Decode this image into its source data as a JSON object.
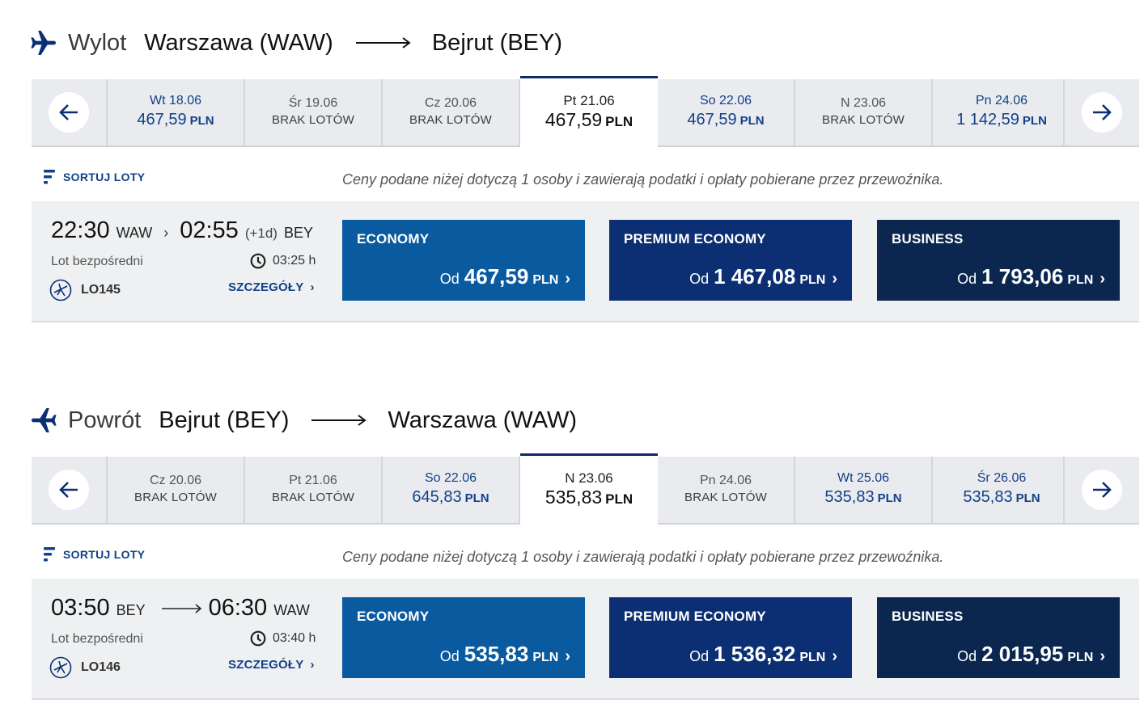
{
  "outbound": {
    "direction_label": "Wylot",
    "from_city": "Warszawa (WAW)",
    "to_city": "Bejrut (BEY)",
    "dates": [
      {
        "label": "Wt 18.06",
        "price": "467,59",
        "currency": "PLN",
        "no_flights": ""
      },
      {
        "label": "Śr 19.06",
        "price": "",
        "currency": "",
        "no_flights": "BRAK LOTÓW"
      },
      {
        "label": "Cz 20.06",
        "price": "",
        "currency": "",
        "no_flights": "BRAK LOTÓW"
      },
      {
        "label": "Pt 21.06",
        "price": "467,59",
        "currency": "PLN",
        "no_flights": "",
        "selected": true
      },
      {
        "label": "So 22.06",
        "price": "467,59",
        "currency": "PLN",
        "no_flights": ""
      },
      {
        "label": "N 23.06",
        "price": "",
        "currency": "",
        "no_flights": "BRAK LOTÓW"
      },
      {
        "label": "Pn 24.06",
        "price": "1 142,59",
        "currency": "PLN",
        "no_flights": ""
      }
    ],
    "sort_label": "SORTUJ LOTY",
    "price_note": "Ceny podane niżej dotyczą 1 osoby i zawierają podatki i opłaty pobierane przez przewoźnika.",
    "flight": {
      "dep_time": "22:30",
      "dep_code": "WAW",
      "arr_time": "02:55",
      "day_offset": "(+1d)",
      "arr_code": "BEY",
      "separator": "›",
      "type": "Lot bezpośredni",
      "duration": "03:25 h",
      "flight_number": "LO145",
      "details_label": "SZCZEGÓŁY",
      "fares": [
        {
          "name": "ECONOMY",
          "from": "Od",
          "amount": "467,59",
          "currency": "PLN"
        },
        {
          "name": "PREMIUM ECONOMY",
          "from": "Od",
          "amount": "1 467,08",
          "currency": "PLN"
        },
        {
          "name": "BUSINESS",
          "from": "Od",
          "amount": "1 793,06",
          "currency": "PLN"
        }
      ]
    }
  },
  "inbound": {
    "direction_label": "Powrót",
    "from_city": "Bejrut (BEY)",
    "to_city": "Warszawa (WAW)",
    "dates": [
      {
        "label": "Cz 20.06",
        "price": "",
        "currency": "",
        "no_flights": "BRAK LOTÓW"
      },
      {
        "label": "Pt 21.06",
        "price": "",
        "currency": "",
        "no_flights": "BRAK LOTÓW"
      },
      {
        "label": "So 22.06",
        "price": "645,83",
        "currency": "PLN",
        "no_flights": ""
      },
      {
        "label": "N 23.06",
        "price": "535,83",
        "currency": "PLN",
        "no_flights": "",
        "selected": true
      },
      {
        "label": "Pn 24.06",
        "price": "",
        "currency": "",
        "no_flights": "BRAK LOTÓW"
      },
      {
        "label": "Wt 25.06",
        "price": "535,83",
        "currency": "PLN",
        "no_flights": ""
      },
      {
        "label": "Śr 26.06",
        "price": "535,83",
        "currency": "PLN",
        "no_flights": ""
      }
    ],
    "sort_label": "SORTUJ LOTY",
    "price_note": "Ceny podane niżej dotyczą 1 osoby i zawierają podatki i opłaty pobierane przez przewoźnika.",
    "flight": {
      "dep_time": "03:50",
      "dep_code": "BEY",
      "arr_time": "06:30",
      "day_offset": "",
      "arr_code": "WAW",
      "separator": "",
      "type": "Lot bezpośredni",
      "duration": "03:40 h",
      "flight_number": "LO146",
      "details_label": "SZCZEGÓŁY",
      "fares": [
        {
          "name": "ECONOMY",
          "from": "Od",
          "amount": "535,83",
          "currency": "PLN"
        },
        {
          "name": "PREMIUM ECONOMY",
          "from": "Od",
          "amount": "1 536,32",
          "currency": "PLN"
        },
        {
          "name": "BUSINESS",
          "from": "Od",
          "amount": "2 015,95",
          "currency": "PLN"
        }
      ]
    }
  },
  "icons": {
    "plane_departure": "airplane-right-icon",
    "plane_return": "airplane-left-icon",
    "prev": "arrow-left-icon",
    "next": "arrow-right-icon",
    "sort": "sort-icon",
    "clock": "clock-icon",
    "airline": "airline-logo-icon",
    "chevron": "chevron-right-icon"
  },
  "colors": {
    "accent": "#12408a",
    "economy": "#0a5aa0",
    "premium_economy": "#0c2f73",
    "business": "#0b2750",
    "strip_bg": "#e9ebee",
    "card_bg": "#eef0f2"
  }
}
